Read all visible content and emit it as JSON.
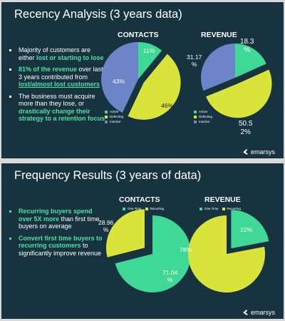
{
  "colors": {
    "background": "#16333f",
    "green": "#3fd896",
    "yellow": "#d8e43a",
    "blue": "#6b85c8",
    "accent_text": "#4fe0a0"
  },
  "slide1": {
    "title": "Recency Analysis (3 years data)",
    "bullets": [
      {
        "pre": "Majority of customers are either ",
        "hl": "lost or starting to lose",
        "post": ""
      },
      {
        "hl1": "81% of the revenue",
        "mid": " over last 3 years contributed from ",
        "hl2": "lost/almost lost customers"
      },
      {
        "pre": "The business must acquire more than they lose, or ",
        "hl": "drastically change their strategy to a retention focus",
        "post": ""
      }
    ],
    "brand": "emarsys"
  },
  "slide2": {
    "title": "Frequency Results (3 years of data)",
    "bullets": [
      {
        "hl": "Recurring buyers spend over 5X more",
        "post": " than first time buyers on average"
      },
      {
        "hl": "Convert first time buyers to recurring customers",
        "post": " to significantly improve revenue"
      }
    ],
    "brand": "emarsys"
  },
  "chart_data": [
    {
      "type": "pie",
      "title": "CONTACTS",
      "legend": "bottom-left",
      "slices": [
        {
          "name": "Active",
          "value": 11,
          "label": "11%",
          "color": "#3fd896"
        },
        {
          "name": "Defecting",
          "value": 46,
          "label": "46%",
          "color": "#d8e43a"
        },
        {
          "name": "Inactive",
          "value": 43,
          "label": "43%",
          "color": "#6b85c8"
        }
      ],
      "exploded": "Defecting"
    },
    {
      "type": "pie",
      "title": "REVENUE",
      "legend": "bottom-left",
      "slices": [
        {
          "name": "Active",
          "value": 18.3,
          "label": "18.3\n%",
          "color": "#3fd896"
        },
        {
          "name": "Defecting",
          "value": 50.52,
          "label": "50.5\n2%",
          "color": "#d8e43a"
        },
        {
          "name": "Inactive",
          "value": 31.17,
          "label": "31.17\n%",
          "color": "#6b85c8"
        }
      ],
      "exploded": "Defecting"
    },
    {
      "type": "pie",
      "title": "CONTACTS",
      "legend": "top",
      "slices": [
        {
          "name": "One Time",
          "value": 71.04,
          "label": "71.04\n%",
          "color": "#3fd896"
        },
        {
          "name": "Recurring",
          "value": 28.96,
          "label": "28.96\n%",
          "color": "#d8e43a"
        }
      ],
      "exploded": "Recurring"
    },
    {
      "type": "pie",
      "title": "REVENUE",
      "legend": "top",
      "slices": [
        {
          "name": "One Time",
          "value": 22,
          "label": "22%",
          "color": "#3fd896"
        },
        {
          "name": "Recurring",
          "value": 78,
          "label": "78%",
          "color": "#d8e43a"
        }
      ],
      "exploded": "One Time"
    }
  ]
}
